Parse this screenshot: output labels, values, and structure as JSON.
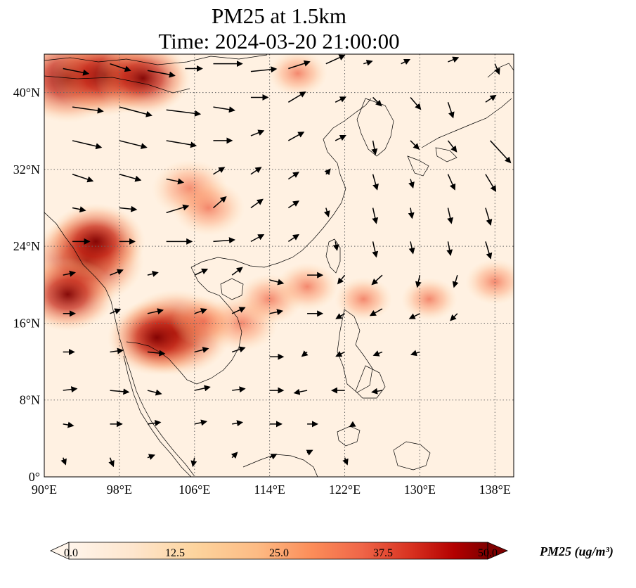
{
  "title_line1": "PM25 at 1.5km",
  "title_line2": "Time: 2024-03-20 21:00:00",
  "map": {
    "lon_range": [
      90,
      140
    ],
    "lat_range": [
      0,
      44
    ],
    "lon_ticks": [
      {
        "value": 90,
        "label": "90°E"
      },
      {
        "value": 98,
        "label": "98°E"
      },
      {
        "value": 106,
        "label": "106°E"
      },
      {
        "value": 114,
        "label": "114°E"
      },
      {
        "value": 122,
        "label": "122°E"
      },
      {
        "value": 130,
        "label": "130°E"
      },
      {
        "value": 138,
        "label": "138°E"
      }
    ],
    "lat_ticks": [
      {
        "value": 0,
        "label": "0°"
      },
      {
        "value": 8,
        "label": "8°N"
      },
      {
        "value": 16,
        "label": "16°N"
      },
      {
        "value": 24,
        "label": "24°N"
      },
      {
        "value": 32,
        "label": "32°N"
      },
      {
        "value": 40,
        "label": "40°N"
      }
    ],
    "gridlines": "dotted"
  },
  "colorbar": {
    "min": 0.0,
    "max": 50.0,
    "extend": "both",
    "ticks": [
      "0.0",
      "12.5",
      "25.0",
      "37.5",
      "50.0"
    ],
    "label": "PM25 (ug/m³)",
    "colors": [
      "#fff5eb",
      "#fdd49e",
      "#fdbb84",
      "#fc8d59",
      "#ef6548",
      "#d7301f",
      "#990000",
      "#7f0000"
    ]
  },
  "pm25_hotspots": [
    {
      "lon": 92.5,
      "lat": 41.5,
      "value": 50
    },
    {
      "lon": 96.5,
      "lat": 41.8,
      "value": 45
    },
    {
      "lon": 100.5,
      "lat": 41.5,
      "value": 38
    },
    {
      "lon": 94.5,
      "lat": 22.5,
      "value": 50
    },
    {
      "lon": 95.5,
      "lat": 24.5,
      "value": 40
    },
    {
      "lon": 92.5,
      "lat": 19.0,
      "value": 38
    },
    {
      "lon": 104.0,
      "lat": 15.0,
      "value": 48
    },
    {
      "lon": 102.0,
      "lat": 14.5,
      "value": 40
    },
    {
      "lon": 105.5,
      "lat": 30.0,
      "value": 26
    },
    {
      "lon": 107.5,
      "lat": 28.0,
      "value": 24
    },
    {
      "lon": 111.0,
      "lat": 16.0,
      "value": 25
    },
    {
      "lon": 114.0,
      "lat": 18.5,
      "value": 20
    },
    {
      "lon": 118.0,
      "lat": 19.8,
      "value": 18
    },
    {
      "lon": 124.0,
      "lat": 18.5,
      "value": 15
    },
    {
      "lon": 131.0,
      "lat": 18.5,
      "value": 14
    },
    {
      "lon": 138.0,
      "lat": 20.3,
      "value": 16
    },
    {
      "lon": 117.0,
      "lat": 42.0,
      "value": 16
    },
    {
      "lon": 107.0,
      "lat": 16.2,
      "value": 20
    }
  ],
  "wind_vectors": [
    {
      "lon": 92,
      "lat": 42.5,
      "u": 3,
      "v": -0.6
    },
    {
      "lon": 97,
      "lat": 43,
      "u": 2.4,
      "v": -0.8
    },
    {
      "lon": 101,
      "lat": 42.3,
      "u": 3.2,
      "v": -0.6
    },
    {
      "lon": 105,
      "lat": 42.5,
      "u": 2,
      "v": 0
    },
    {
      "lon": 108,
      "lat": 43,
      "u": 3.4,
      "v": 0
    },
    {
      "lon": 112,
      "lat": 42.2,
      "u": 3,
      "v": 0.3
    },
    {
      "lon": 116,
      "lat": 42.5,
      "u": 2.5,
      "v": 0.8
    },
    {
      "lon": 120,
      "lat": 43,
      "u": 2.2,
      "v": 1
    },
    {
      "lon": 124,
      "lat": 43,
      "u": 1,
      "v": 0.3
    },
    {
      "lon": 128,
      "lat": 43,
      "u": 1,
      "v": 0.5
    },
    {
      "lon": 133,
      "lat": 43.2,
      "u": 1.2,
      "v": 0.5
    },
    {
      "lon": 138,
      "lat": 43,
      "u": 0.5,
      "v": -1.2
    },
    {
      "lon": 93,
      "lat": 38.5,
      "u": 3.6,
      "v": -0.5
    },
    {
      "lon": 98,
      "lat": 38.5,
      "u": 3.8,
      "v": -1
    },
    {
      "lon": 103,
      "lat": 38.2,
      "u": 4,
      "v": -0.5
    },
    {
      "lon": 108,
      "lat": 38.5,
      "u": 2.5,
      "v": -0.4
    },
    {
      "lon": 112,
      "lat": 39.5,
      "u": 2,
      "v": 0
    },
    {
      "lon": 116,
      "lat": 39,
      "u": 2,
      "v": 1.2
    },
    {
      "lon": 121,
      "lat": 39,
      "u": 1.2,
      "v": 0.6
    },
    {
      "lon": 125,
      "lat": 39.5,
      "u": 1,
      "v": -1
    },
    {
      "lon": 129,
      "lat": 39.5,
      "u": 1.2,
      "v": -1.4
    },
    {
      "lon": 133,
      "lat": 39,
      "u": 0.6,
      "v": -1.8
    },
    {
      "lon": 137,
      "lat": 39,
      "u": 1.2,
      "v": 0.8
    },
    {
      "lon": 93,
      "lat": 35,
      "u": 3.4,
      "v": -0.8
    },
    {
      "lon": 98,
      "lat": 35,
      "u": 3.2,
      "v": -0.8
    },
    {
      "lon": 103,
      "lat": 35,
      "u": 3.5,
      "v": -0.6
    },
    {
      "lon": 108,
      "lat": 35,
      "u": 2.2,
      "v": 0
    },
    {
      "lon": 112,
      "lat": 35.5,
      "u": 1.5,
      "v": 0.6
    },
    {
      "lon": 116,
      "lat": 35,
      "u": 1.8,
      "v": 1
    },
    {
      "lon": 121,
      "lat": 35,
      "u": 1.2,
      "v": 0.6
    },
    {
      "lon": 125,
      "lat": 35,
      "u": 0.3,
      "v": -1.6
    },
    {
      "lon": 129,
      "lat": 35,
      "u": 1,
      "v": -1
    },
    {
      "lon": 133,
      "lat": 35,
      "u": 1,
      "v": -1.3
    },
    {
      "lon": 137.5,
      "lat": 35,
      "u": 2.4,
      "v": -2.6
    },
    {
      "lon": 93,
      "lat": 31.5,
      "u": 2.4,
      "v": -0.8
    },
    {
      "lon": 98,
      "lat": 31.5,
      "u": 2.5,
      "v": -0.7
    },
    {
      "lon": 103,
      "lat": 31,
      "u": 2,
      "v": -0.4
    },
    {
      "lon": 108,
      "lat": 31.5,
      "u": 1.3,
      "v": 0.8
    },
    {
      "lon": 112,
      "lat": 31.5,
      "u": 1.2,
      "v": 0.8
    },
    {
      "lon": 116,
      "lat": 31,
      "u": 1.2,
      "v": 0.8
    },
    {
      "lon": 120,
      "lat": 31.5,
      "u": 0.5,
      "v": 0.6
    },
    {
      "lon": 125,
      "lat": 31.5,
      "u": 0.5,
      "v": -1.8
    },
    {
      "lon": 129,
      "lat": 31,
      "u": 0.3,
      "v": -1
    },
    {
      "lon": 133,
      "lat": 31.5,
      "u": 0.8,
      "v": -1.8
    },
    {
      "lon": 137,
      "lat": 31.5,
      "u": 1.2,
      "v": -2
    },
    {
      "lon": 93,
      "lat": 28,
      "u": 1.5,
      "v": -0.3
    },
    {
      "lon": 98,
      "lat": 28,
      "u": 2,
      "v": -0.2
    },
    {
      "lon": 103,
      "lat": 27.5,
      "u": 2.6,
      "v": 0.8
    },
    {
      "lon": 108,
      "lat": 28,
      "u": 1.5,
      "v": 1.3
    },
    {
      "lon": 112,
      "lat": 28,
      "u": 1.4,
      "v": 1
    },
    {
      "lon": 116,
      "lat": 28,
      "u": 1.2,
      "v": 0.8
    },
    {
      "lon": 120,
      "lat": 28,
      "u": 0.3,
      "v": -1
    },
    {
      "lon": 125,
      "lat": 28,
      "u": 0.4,
      "v": -1.8
    },
    {
      "lon": 129,
      "lat": 28,
      "u": 0.2,
      "v": -1.2
    },
    {
      "lon": 133,
      "lat": 28,
      "u": 0.4,
      "v": -1.8
    },
    {
      "lon": 137,
      "lat": 28,
      "u": 0.6,
      "v": -2
    },
    {
      "lon": 93,
      "lat": 24.5,
      "u": 2,
      "v": 0
    },
    {
      "lon": 98,
      "lat": 24.5,
      "u": 1.8,
      "v": 0
    },
    {
      "lon": 103,
      "lat": 24.5,
      "u": 3,
      "v": 0
    },
    {
      "lon": 108,
      "lat": 24.5,
      "u": 2.5,
      "v": 0.2
    },
    {
      "lon": 112,
      "lat": 24.5,
      "u": 1.5,
      "v": 0.8
    },
    {
      "lon": 116,
      "lat": 24.5,
      "u": 1.2,
      "v": 0.8
    },
    {
      "lon": 121,
      "lat": 24.5,
      "u": 0.2,
      "v": -1
    },
    {
      "lon": 125,
      "lat": 24.5,
      "u": 0.4,
      "v": -1.8
    },
    {
      "lon": 129,
      "lat": 24.5,
      "u": 0.3,
      "v": -1.4
    },
    {
      "lon": 133,
      "lat": 24.5,
      "u": 0.3,
      "v": -1.6
    },
    {
      "lon": 137,
      "lat": 24.5,
      "u": 0.6,
      "v": -2
    },
    {
      "lon": 92,
      "lat": 21,
      "u": 1.4,
      "v": 0.3
    },
    {
      "lon": 97,
      "lat": 21,
      "u": 1.5,
      "v": 0.6
    },
    {
      "lon": 101,
      "lat": 21,
      "u": 1.2,
      "v": 0.3
    },
    {
      "lon": 106,
      "lat": 21,
      "u": 1.5,
      "v": 0.7
    },
    {
      "lon": 110,
      "lat": 21,
      "u": 1.2,
      "v": 0.9
    },
    {
      "lon": 114,
      "lat": 20.5,
      "u": 1.6,
      "v": -0.4
    },
    {
      "lon": 118,
      "lat": 21,
      "u": 1.8,
      "v": 0
    },
    {
      "lon": 122,
      "lat": 21,
      "u": -0.8,
      "v": -1
    },
    {
      "lon": 126,
      "lat": 21,
      "u": -1.2,
      "v": -1.1
    },
    {
      "lon": 130,
      "lat": 21,
      "u": -0.3,
      "v": -1.4
    },
    {
      "lon": 134,
      "lat": 21,
      "u": -0.4,
      "v": -1.4
    },
    {
      "lon": 92,
      "lat": 17,
      "u": 1.4,
      "v": 0
    },
    {
      "lon": 97,
      "lat": 17,
      "u": 1.2,
      "v": 0.5
    },
    {
      "lon": 101,
      "lat": 17,
      "u": 1.8,
      "v": 0.4
    },
    {
      "lon": 106,
      "lat": 17,
      "u": 1.4,
      "v": 0.5
    },
    {
      "lon": 110,
      "lat": 17,
      "u": 1.5,
      "v": 0.7
    },
    {
      "lon": 114,
      "lat": 17,
      "u": 1.5,
      "v": 0.3
    },
    {
      "lon": 118,
      "lat": 17,
      "u": 1.8,
      "v": 0
    },
    {
      "lon": 122,
      "lat": 17,
      "u": -1,
      "v": -0.6
    },
    {
      "lon": 126,
      "lat": 17.5,
      "u": -1.4,
      "v": -0.8
    },
    {
      "lon": 130,
      "lat": 17,
      "u": -1.2,
      "v": -0.6
    },
    {
      "lon": 134,
      "lat": 17,
      "u": -0.8,
      "v": -0.8
    },
    {
      "lon": 92,
      "lat": 13,
      "u": 1.3,
      "v": 0
    },
    {
      "lon": 97,
      "lat": 13,
      "u": 1.5,
      "v": 0.2
    },
    {
      "lon": 101,
      "lat": 13,
      "u": 2,
      "v": -0.2
    },
    {
      "lon": 106,
      "lat": 13,
      "u": 1.6,
      "v": 0.4
    },
    {
      "lon": 110,
      "lat": 13,
      "u": 1.5,
      "v": 0.5
    },
    {
      "lon": 114,
      "lat": 12.5,
      "u": 1.6,
      "v": 0
    },
    {
      "lon": 118,
      "lat": 13,
      "u": -0.6,
      "v": -0.5
    },
    {
      "lon": 122,
      "lat": 13,
      "u": -1,
      "v": -0.5
    },
    {
      "lon": 126,
      "lat": 13,
      "u": -1,
      "v": -0.4
    },
    {
      "lon": 130,
      "lat": 13,
      "u": -1,
      "v": -0.3
    },
    {
      "lon": 92,
      "lat": 9,
      "u": 1.6,
      "v": 0.2
    },
    {
      "lon": 97,
      "lat": 9,
      "u": 2.2,
      "v": -0.2
    },
    {
      "lon": 101,
      "lat": 9,
      "u": 1.6,
      "v": -0.4
    },
    {
      "lon": 106,
      "lat": 9,
      "u": 1.8,
      "v": 0.4
    },
    {
      "lon": 110,
      "lat": 9,
      "u": 1.5,
      "v": 0.2
    },
    {
      "lon": 114,
      "lat": 9,
      "u": 1.6,
      "v": 0
    },
    {
      "lon": 118,
      "lat": 9,
      "u": -1.5,
      "v": -0.3
    },
    {
      "lon": 122,
      "lat": 9,
      "u": -1.5,
      "v": 0
    },
    {
      "lon": 126,
      "lat": 9,
      "u": -1.2,
      "v": -0.2
    },
    {
      "lon": 92,
      "lat": 5.5,
      "u": 1.2,
      "v": -0.2
    },
    {
      "lon": 97,
      "lat": 5.5,
      "u": 1.4,
      "v": 0
    },
    {
      "lon": 101,
      "lat": 5.5,
      "u": 1.5,
      "v": 0.2
    },
    {
      "lon": 106,
      "lat": 5.5,
      "u": 1.4,
      "v": 0.3
    },
    {
      "lon": 110,
      "lat": 5.5,
      "u": 1.2,
      "v": 0.2
    },
    {
      "lon": 114,
      "lat": 5.5,
      "u": 1.4,
      "v": 0
    },
    {
      "lon": 118,
      "lat": 5.5,
      "u": 1.2,
      "v": 0
    },
    {
      "lon": 123,
      "lat": 5.5,
      "u": -0.5,
      "v": -0.3
    },
    {
      "lon": 92,
      "lat": 2,
      "u": 0.3,
      "v": -0.8
    },
    {
      "lon": 97,
      "lat": 2,
      "u": 0.4,
      "v": -1
    },
    {
      "lon": 101,
      "lat": 2,
      "u": 0.8,
      "v": 0.3
    },
    {
      "lon": 106,
      "lat": 2,
      "u": -0.2,
      "v": -1
    },
    {
      "lon": 110,
      "lat": 2,
      "u": 0.6,
      "v": 0.6
    },
    {
      "lon": 114,
      "lat": 2,
      "u": 0.8,
      "v": 0.4
    },
    {
      "lon": 118,
      "lat": 2.5,
      "u": 0.6,
      "v": 0.3
    },
    {
      "lon": 122,
      "lat": 2,
      "u": 0.3,
      "v": -0.8
    }
  ]
}
